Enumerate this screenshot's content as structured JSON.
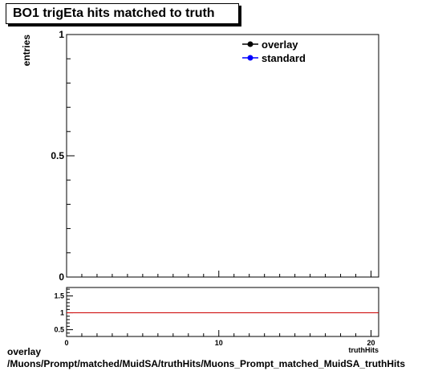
{
  "title": "BO1 trigEta hits matched to truth",
  "footer": {
    "line1": "overlay",
    "line2": "/Muons/Prompt/matched/MuidSA/truthHits/Muons_Prompt_matched_MuidSA_truthHits"
  },
  "colors": {
    "overlay": "#000000",
    "standard": "#0000ff",
    "ratio_line": "#cc0000"
  },
  "chart_data": [
    {
      "type": "line",
      "title": "BO1 trigEta hits matched to truth",
      "xlabel": "",
      "ylabel": "entries",
      "xlim": [
        0,
        20.5
      ],
      "ylim": [
        0,
        1
      ],
      "yticks": [
        {
          "value": 0,
          "label": "0"
        },
        {
          "value": 0.5,
          "label": "0.5"
        },
        {
          "value": 1,
          "label": "1"
        }
      ],
      "legend_position": "top-right",
      "series": [
        {
          "name": "overlay",
          "color": "#000000",
          "x": [],
          "y": []
        },
        {
          "name": "standard",
          "color": "#0000ff",
          "x": [],
          "y": []
        }
      ]
    },
    {
      "type": "line",
      "title": "",
      "xlabel": "truthHits",
      "ylabel": "",
      "xlim": [
        0,
        20.5
      ],
      "ylim": [
        0.3,
        1.75
      ],
      "xticks": [
        {
          "value": 0,
          "label": "0"
        },
        {
          "value": 10,
          "label": "10"
        },
        {
          "value": 20,
          "label": "20"
        }
      ],
      "yticks": [
        {
          "value": 0.5,
          "label": "0.5"
        },
        {
          "value": 1,
          "label": "1"
        },
        {
          "value": 1.5,
          "label": "1.5"
        }
      ],
      "reference_line": 1
    }
  ]
}
